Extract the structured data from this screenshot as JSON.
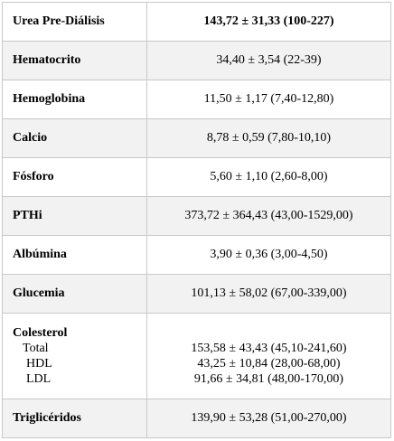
{
  "table": {
    "rows": [
      {
        "label": "Urea Pre-Diálisis",
        "value": "143,72 ± 31,33 (100-227)"
      },
      {
        "label": "Hematocrito",
        "value": "34,40 ± 3,54 (22-39)"
      },
      {
        "label": "Hemoglobina",
        "value": "11,50 ± 1,17 (7,40-12,80)"
      },
      {
        "label": "Calcio",
        "value": "8,78 ± 0,59 (7,80-10,10)"
      },
      {
        "label": "Fósforo",
        "value": "5,60 ± 1,10 (2,60-8,00)"
      },
      {
        "label": "PTHi",
        "value": "373,72 ± 364,43 (43,00-1529,00)"
      },
      {
        "label": "Albúmina",
        "value": "3,90 ± 0,36 (3,00-4,50)"
      },
      {
        "label": "Glucemia",
        "value": "101,13 ± 58,02 (67,00-339,00)"
      },
      {
        "label": "Colesterol",
        "subrows": [
          {
            "label": "Total",
            "value": "153,58 ± 43,43 (45,10-241,60)"
          },
          {
            "label": "HDL",
            "value": "43,25 ± 10,84 (28,00-68,00)"
          },
          {
            "label": "LDL",
            "value": "91,66 ± 34,81 (48,00-170,00)"
          }
        ]
      },
      {
        "label": "Triglicéridos",
        "value": "139,90 ± 53,28 (51,00-270,00)"
      }
    ]
  }
}
